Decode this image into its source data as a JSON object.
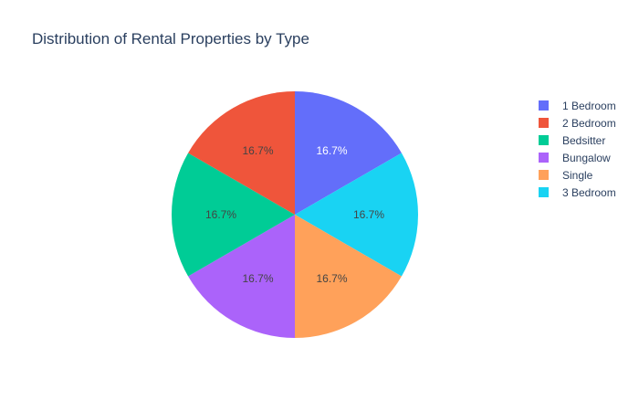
{
  "chart_data": {
    "type": "pie",
    "title": "Distribution of Rental Properties by Type",
    "slices": [
      {
        "label": "1 Bedroom",
        "value": 1,
        "percent_label": "16.7%",
        "color": "#636efa"
      },
      {
        "label": "3 Bedroom",
        "value": 1,
        "percent_label": "16.7%",
        "color": "#19d3f3"
      },
      {
        "label": "Single",
        "value": 1,
        "percent_label": "16.7%",
        "color": "#ffa15a"
      },
      {
        "label": "Bungalow",
        "value": 1,
        "percent_label": "16.7%",
        "color": "#ab63fa"
      },
      {
        "label": "Bedsitter",
        "value": 1,
        "percent_label": "16.7%",
        "color": "#00cc96"
      },
      {
        "label": "2 Bedroom",
        "value": 1,
        "percent_label": "16.7%",
        "color": "#ef553b"
      }
    ],
    "legend": {
      "placement": "right",
      "entries": [
        "1 Bedroom",
        "2 Bedroom",
        "Bedsitter",
        "Bungalow",
        "Single",
        "3 Bedroom"
      ]
    }
  }
}
